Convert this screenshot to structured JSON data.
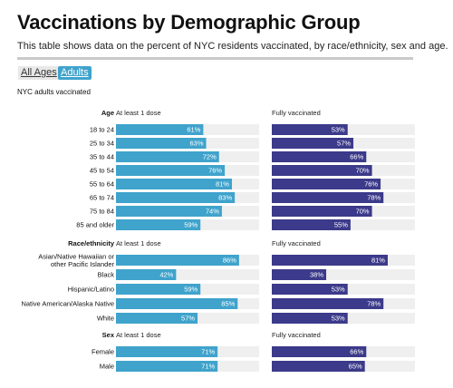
{
  "title": "Vaccinations by Demographic Group",
  "subtitle": "This table shows data on the percent of NYC residents vaccinated, by race/ethnicity, sex and age.",
  "tabs": [
    {
      "label": "All Ages",
      "selected": false
    },
    {
      "label": "Adults",
      "selected": true
    }
  ],
  "scope_label": "NYC adults vaccinated",
  "colors": {
    "at_least_one": "#3fa3cc",
    "fully": "#3c3a8a",
    "track": "#efefef"
  },
  "chart_data": {
    "type": "bar",
    "orientation": "horizontal",
    "xlim": [
      0,
      100
    ],
    "columns": [
      "At least 1 dose",
      "Fully vaccinated"
    ],
    "groups": [
      {
        "name": "Age",
        "categories": [
          "18 to 24",
          "25 to 34",
          "35 to 44",
          "45 to 54",
          "55 to 64",
          "65 to 74",
          "75 to 84",
          "85 and older"
        ],
        "series": [
          {
            "name": "At least 1 dose",
            "values": [
              61,
              63,
              72,
              76,
              81,
              83,
              74,
              59
            ]
          },
          {
            "name": "Fully vaccinated",
            "values": [
              53,
              57,
              66,
              70,
              76,
              78,
              70,
              55
            ]
          }
        ]
      },
      {
        "name": "Race/ethnicity",
        "categories": [
          "Asian/Native Hawaiian or other Pacific Islander",
          "Black",
          "Hispanic/Latino",
          "Native American/Alaska Native",
          "White"
        ],
        "series": [
          {
            "name": "At least 1 dose",
            "values": [
              86,
              42,
              59,
              85,
              57
            ]
          },
          {
            "name": "Fully vaccinated",
            "values": [
              81,
              38,
              53,
              78,
              53
            ]
          }
        ]
      },
      {
        "name": "Sex",
        "categories": [
          "Female",
          "Male"
        ],
        "series": [
          {
            "name": "At least 1 dose",
            "values": [
              71,
              71
            ]
          },
          {
            "name": "Fully vaccinated",
            "values": [
              66,
              65
            ]
          }
        ]
      }
    ]
  }
}
